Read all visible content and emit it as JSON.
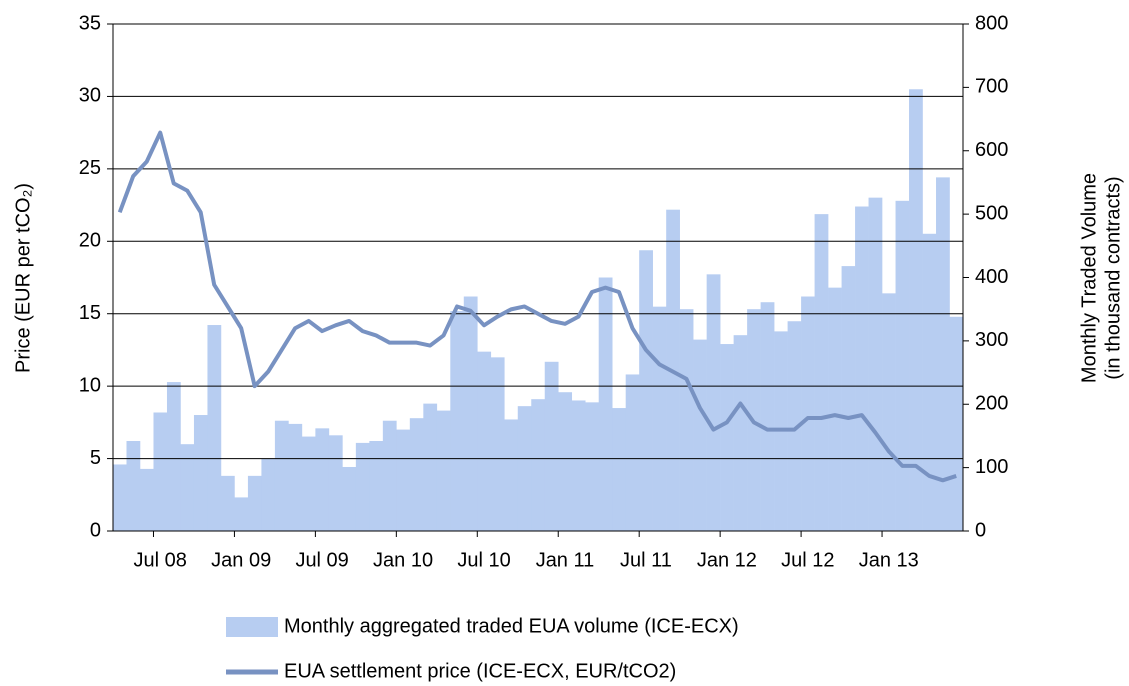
{
  "chart_data": {
    "type": "bar",
    "y_label": "Price (EUR per tCO₂)",
    "y2_label": [
      "Monthly Traded Volume",
      "(in thousand contracts)"
    ],
    "categories": [
      null,
      null,
      null,
      "Jul 08",
      null,
      null,
      null,
      null,
      null,
      "Jan 09",
      null,
      null,
      null,
      null,
      null,
      "Jul 09",
      null,
      null,
      null,
      null,
      null,
      "Jan 10",
      null,
      null,
      null,
      null,
      null,
      "Jul 10",
      null,
      null,
      null,
      null,
      null,
      "Jan 11",
      null,
      null,
      null,
      null,
      null,
      "Jul 11",
      null,
      null,
      null,
      null,
      null,
      "Jan 12",
      null,
      null,
      null,
      null,
      null,
      "Jul 12",
      null,
      null,
      null,
      null,
      null,
      "Jan 13",
      null,
      null,
      null,
      null,
      null
    ],
    "series": [
      {
        "name": "Monthly aggregated traded EUA volume (ICE-ECX)",
        "type": "bar",
        "axis": "y2",
        "color": "#b7cdf1",
        "values": [
          105,
          142,
          98,
          187,
          235,
          137,
          183,
          325,
          87,
          53,
          87,
          114,
          174,
          169,
          149,
          162,
          151,
          101,
          139,
          142,
          174,
          160,
          178,
          201,
          190,
          347,
          370,
          283,
          274,
          176,
          197,
          208,
          267,
          219,
          206,
          203,
          400,
          194,
          247,
          443,
          354,
          507,
          350,
          302,
          405,
          295,
          309,
          350,
          361,
          315,
          331,
          370,
          500,
          384,
          418,
          512,
          526,
          375,
          521,
          697,
          469,
          558,
          338
        ]
      },
      {
        "name": "EUA settlement price (ICE-ECX, EUR/tCO2)",
        "type": "line",
        "axis": "y",
        "color": "#7892c2",
        "values": [
          22,
          24.5,
          25.5,
          27.5,
          24,
          23.5,
          22,
          17,
          15.5,
          14,
          10,
          11,
          12.5,
          14,
          14.5,
          13.8,
          14.2,
          14.5,
          13.8,
          13.5,
          13,
          13,
          13,
          12.8,
          13.5,
          15.5,
          15.2,
          14.2,
          14.8,
          15.3,
          15.5,
          15,
          14.5,
          14.3,
          14.8,
          16.5,
          16.8,
          16.5,
          14,
          12.5,
          11.5,
          11,
          10.5,
          8.5,
          7,
          7.5,
          8.8,
          7.5,
          7,
          7,
          7,
          7.8,
          7.8,
          8,
          7.8,
          8,
          6.8,
          5.5,
          4.5,
          4.5,
          3.8,
          3.5,
          3.8
        ]
      }
    ],
    "ylim": [
      0,
      35
    ],
    "yticks": [
      0,
      5,
      10,
      15,
      20,
      25,
      30,
      35
    ],
    "y2lim": [
      0,
      800
    ],
    "y2ticks": [
      0,
      100,
      200,
      300,
      400,
      500,
      600,
      700,
      800
    ],
    "grid": true,
    "legend": "bottom"
  }
}
